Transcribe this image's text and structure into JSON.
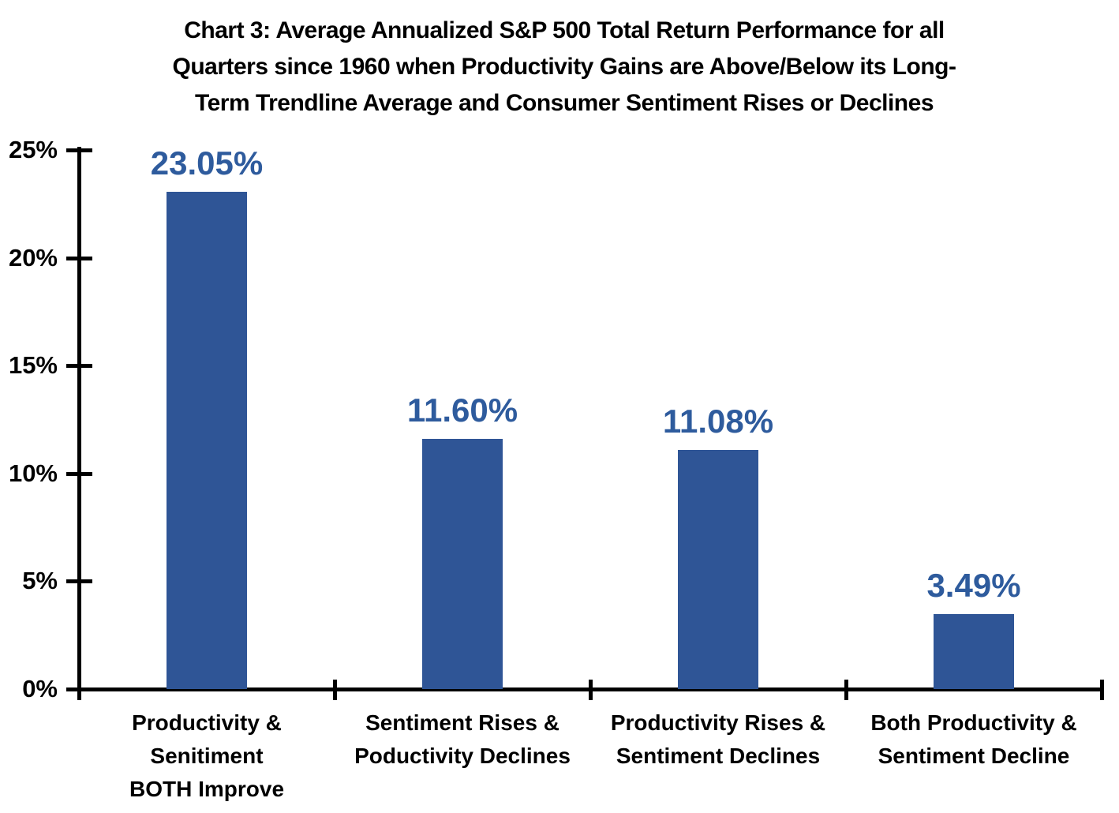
{
  "chart_data": {
    "type": "bar",
    "title": "Chart 3: Average Annualized S&P 500 Total Return Performance for all Quarters since 1960 when Productivity Gains are Above/Below its Long-Term Trendline Average and Consumer Sentiment Rises or Declines",
    "title_lines": [
      "Chart 3: Average Annualized S&P 500 Total Return Performance for all",
      "Quarters since 1960 when Productivity Gains are Above/Below its Long-",
      "Term Trendline Average and Consumer Sentiment Rises or Declines"
    ],
    "categories": [
      "Productivity & Senitiment BOTH Improve",
      "Sentiment Rises & Poductivity Declines",
      "Productivity Rises & Sentiment Declines",
      "Both Productivity & Sentiment Decline"
    ],
    "category_lines": [
      [
        "Productivity &",
        "Senitiment",
        "BOTH Improve"
      ],
      [
        "Sentiment Rises &",
        "Poductivity Declines"
      ],
      [
        "Productivity Rises &",
        "Sentiment Declines"
      ],
      [
        "Both Productivity &",
        "Sentiment Decline"
      ]
    ],
    "values": [
      23.05,
      11.6,
      11.08,
      3.49
    ],
    "value_labels": [
      "23.05%",
      "11.60%",
      "11.08%",
      "3.49%"
    ],
    "xlabel": "",
    "ylabel": "",
    "ylim": [
      0,
      25
    ],
    "yticks": [
      0,
      5,
      10,
      15,
      20,
      25
    ],
    "ytick_labels": [
      "0%",
      "5%",
      "10%",
      "15%",
      "20%",
      "25%"
    ],
    "grid": false,
    "legend": "none",
    "colors": {
      "bar": "#2F5596",
      "value_label": "#2E5B9D",
      "axis": "#000000",
      "title_text": "#000000"
    }
  }
}
